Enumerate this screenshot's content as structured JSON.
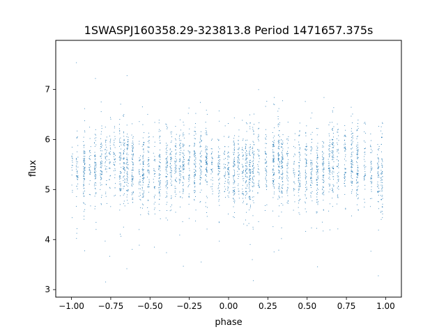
{
  "chart_data": {
    "type": "scatter",
    "title": "1SWASPJ160358.29-323813.8 Period 1471657.375s",
    "xlabel": "phase",
    "ylabel": "flux",
    "xlim": [
      -1.1,
      1.1
    ],
    "ylim": [
      2.85,
      7.98
    ],
    "xticks": [
      -1.0,
      -0.75,
      -0.5,
      -0.25,
      0.0,
      0.25,
      0.5,
      0.75,
      1.0
    ],
    "xtick_labels": [
      "−1.00",
      "−0.75",
      "−0.50",
      "−0.25",
      "0.00",
      "0.25",
      "0.50",
      "0.75",
      "1.00"
    ],
    "yticks": [
      3,
      4,
      5,
      6,
      7
    ],
    "ytick_labels": [
      "3",
      "4",
      "5",
      "6",
      "7"
    ],
    "grid": false,
    "legend": "none",
    "marker_color": "#1f77b4",
    "phase_range": [
      -1.0,
      1.0
    ],
    "flux_core_range": [
      4.8,
      6.2
    ],
    "flux_full_range": [
      3.1,
      7.7
    ],
    "flux_median": 5.45,
    "note_points": "dense light curve folded twice over phase -1 to 1; points clustered in vertical streaks"
  }
}
